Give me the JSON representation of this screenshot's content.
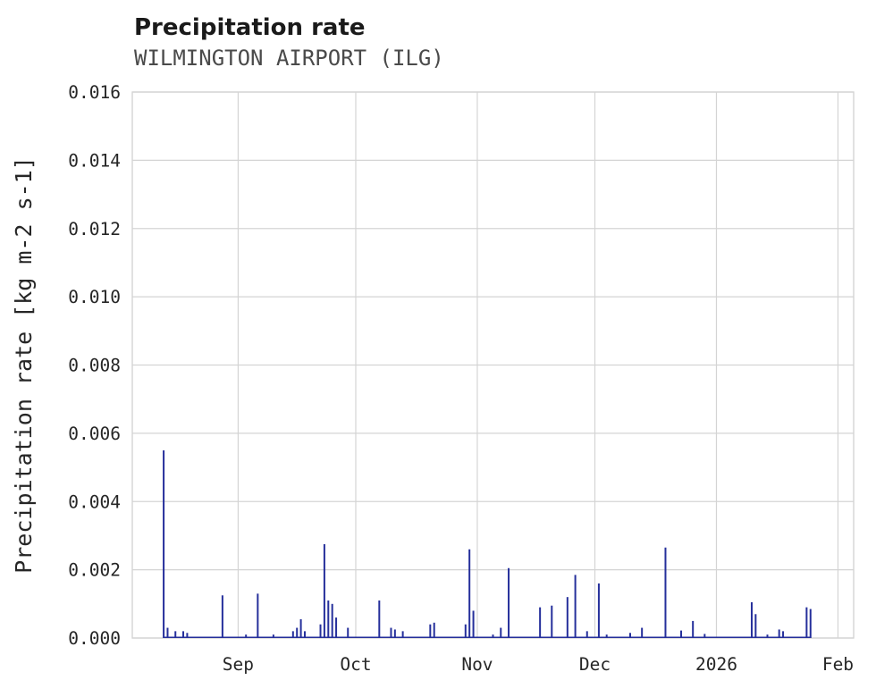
{
  "chart_data": {
    "type": "line",
    "title": "Precipitation rate",
    "subtitle": "WILMINGTON AIRPORT (ILG)",
    "ylabel": "Precipitation rate [kg m-2 s-1]",
    "xlabel": "",
    "x_axis": "time (Aug 2025 - Feb 2026)",
    "ylim": [
      0,
      0.016
    ],
    "x_domain_days": [
      0,
      184
    ],
    "grid": true,
    "legend": false,
    "line_color": "#252f9b",
    "grid_color": "#d4d4d4",
    "axis_text_color": "#262626",
    "y_ticks": [
      {
        "value": 0.0,
        "label": "0.000"
      },
      {
        "value": 0.002,
        "label": "0.002"
      },
      {
        "value": 0.004,
        "label": "0.004"
      },
      {
        "value": 0.006,
        "label": "0.006"
      },
      {
        "value": 0.008,
        "label": "0.008"
      },
      {
        "value": 0.01,
        "label": "0.010"
      },
      {
        "value": 0.012,
        "label": "0.012"
      },
      {
        "value": 0.014,
        "label": "0.014"
      },
      {
        "value": 0.016,
        "label": "0.016"
      }
    ],
    "x_ticks": [
      {
        "day": 27,
        "label": "Sep"
      },
      {
        "day": 57,
        "label": "Oct"
      },
      {
        "day": 88,
        "label": "Nov"
      },
      {
        "day": 118,
        "label": "Dec"
      },
      {
        "day": 149,
        "label": "2026"
      },
      {
        "day": 180,
        "label": "Feb"
      }
    ],
    "points": [
      [
        8,
        0.0055
      ],
      [
        9,
        0.0003
      ],
      [
        11,
        0.0002
      ],
      [
        13,
        0.0002
      ],
      [
        14,
        0.00015
      ],
      [
        23,
        0.00125
      ],
      [
        29,
        0.0001
      ],
      [
        32,
        0.0013
      ],
      [
        36,
        0.0001
      ],
      [
        41,
        0.0002
      ],
      [
        42,
        0.0003
      ],
      [
        43,
        0.00055
      ],
      [
        44,
        0.0002
      ],
      [
        48,
        0.0004
      ],
      [
        49,
        0.00275
      ],
      [
        50,
        0.0011
      ],
      [
        51,
        0.001
      ],
      [
        52,
        0.0006
      ],
      [
        55,
        0.0003
      ],
      [
        63,
        0.0011
      ],
      [
        66,
        0.0003
      ],
      [
        67,
        0.00025
      ],
      [
        69,
        0.0002
      ],
      [
        76,
        0.0004
      ],
      [
        77,
        0.00045
      ],
      [
        85,
        0.0004
      ],
      [
        86,
        0.0026
      ],
      [
        87,
        0.0008
      ],
      [
        92,
        0.0001
      ],
      [
        94,
        0.0003
      ],
      [
        96,
        0.00205
      ],
      [
        104,
        0.0009
      ],
      [
        107,
        0.00095
      ],
      [
        111,
        0.0012
      ],
      [
        113,
        0.00185
      ],
      [
        116,
        0.0002
      ],
      [
        119,
        0.0016
      ],
      [
        121,
        0.0001
      ],
      [
        127,
        0.00015
      ],
      [
        130,
        0.0003
      ],
      [
        136,
        0.00265
      ],
      [
        140,
        0.00022
      ],
      [
        143,
        0.0005
      ],
      [
        146,
        0.00012
      ],
      [
        158,
        0.00105
      ],
      [
        159,
        0.0007
      ],
      [
        162,
        0.0001
      ],
      [
        165,
        0.00025
      ],
      [
        166,
        0.0002
      ],
      [
        172,
        0.0009
      ],
      [
        173,
        0.00085
      ]
    ]
  }
}
